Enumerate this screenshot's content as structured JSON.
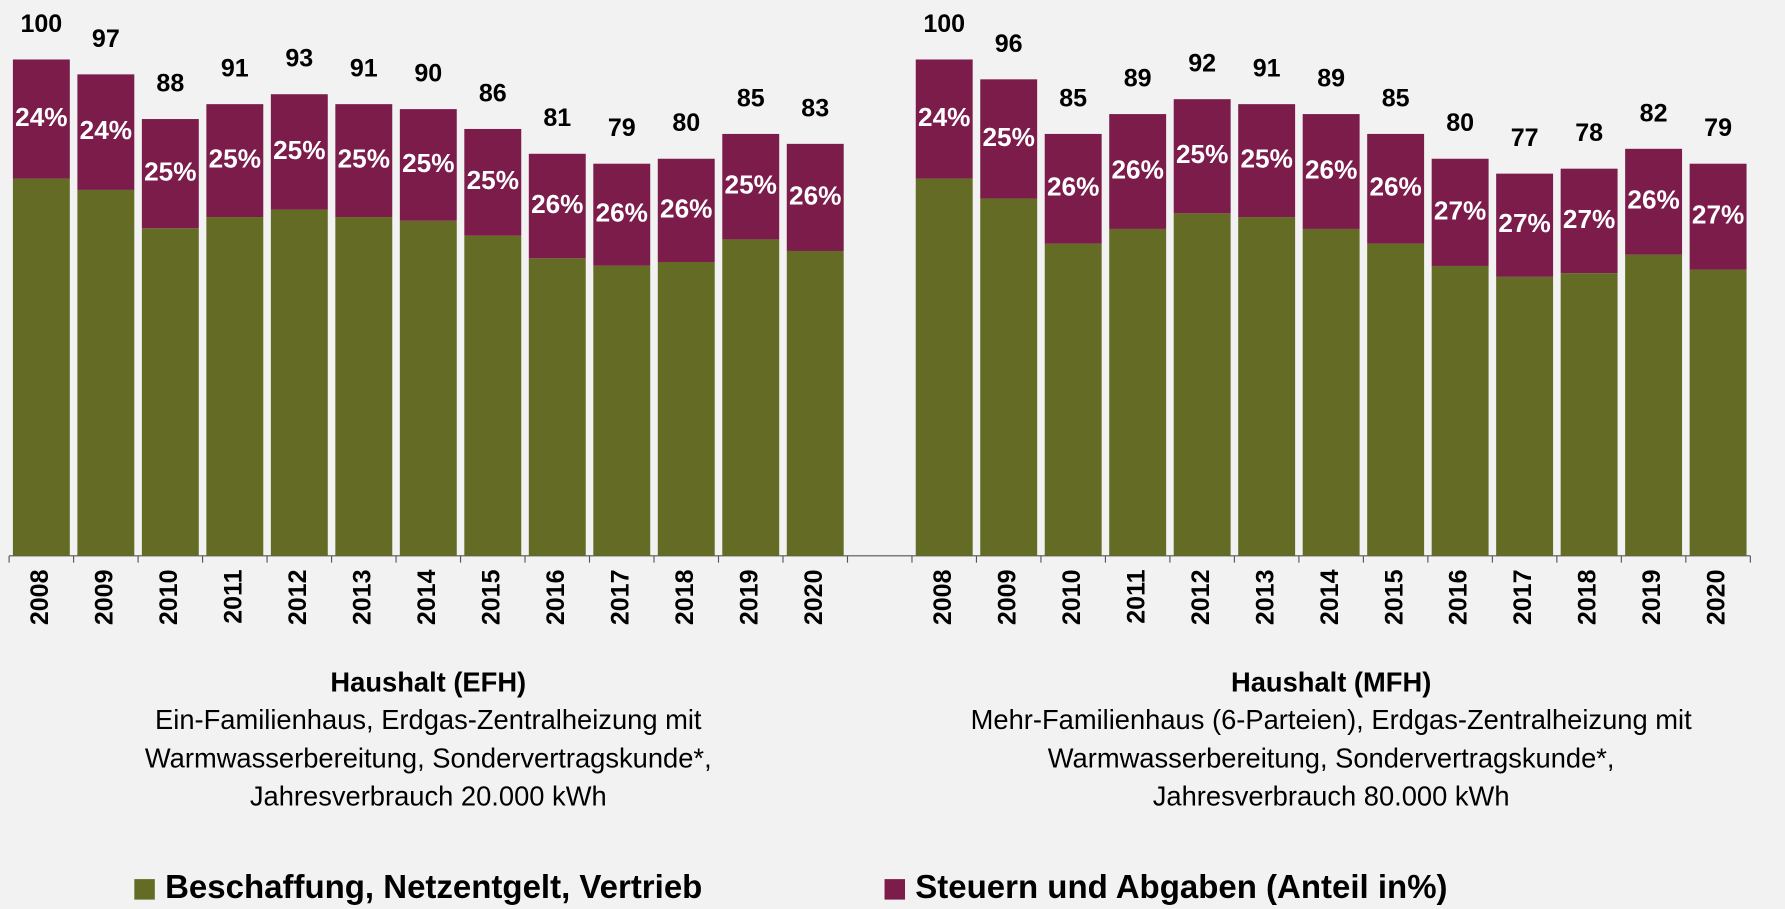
{
  "chart_data": {
    "type": "bar",
    "stacked": true,
    "series": [
      {
        "name": "Beschaffung, Netzentgelt, Vertrieb",
        "color": "#646b24"
      },
      {
        "name": "Steuern und Abgaben (Anteil in%)",
        "color": "#7b1c4b"
      }
    ],
    "ylim": [
      0,
      100
    ],
    "panels": [
      {
        "title": "Haushalt (EFH)",
        "subtitle": [
          "Ein-Familienhaus, Erdgas-Zentralheizung mit",
          "Warmwasserbereitung, Sondervertragskunde*,",
          "Jahresverbrauch 20.000 kWh"
        ],
        "categories": [
          "2008",
          "2009",
          "2010",
          "2011",
          "2012",
          "2013",
          "2014",
          "2015",
          "2016",
          "2017",
          "2018",
          "2019",
          "2020"
        ],
        "totals": [
          100,
          97,
          88,
          91,
          93,
          91,
          90,
          86,
          81,
          79,
          80,
          85,
          83
        ],
        "shares": [
          24,
          24,
          25,
          25,
          25,
          25,
          25,
          25,
          26,
          26,
          26,
          25,
          26
        ],
        "share_labels": [
          "24%",
          "24%",
          "25%",
          "25%",
          "25%",
          "25%",
          "25%",
          "25%",
          "26%",
          "26%",
          "26%",
          "25%",
          "26%"
        ]
      },
      {
        "title": "Haushalt (MFH)",
        "subtitle": [
          "Mehr-Familienhaus (6-Parteien), Erdgas-Zentralheizung mit",
          "Warmwasserbereitung, Sondervertragskunde*,",
          "Jahresverbrauch 80.000 kWh"
        ],
        "categories": [
          "2008",
          "2009",
          "2010",
          "2011",
          "2012",
          "2013",
          "2014",
          "2015",
          "2016",
          "2017",
          "2018",
          "2019",
          "2020"
        ],
        "totals": [
          100,
          96,
          85,
          89,
          92,
          91,
          89,
          85,
          80,
          77,
          78,
          82,
          79
        ],
        "shares": [
          24,
          25,
          26,
          26,
          25,
          25,
          26,
          26,
          27,
          27,
          27,
          26,
          27
        ],
        "share_labels": [
          "24%",
          "25%",
          "26%",
          "26%",
          "25%",
          "25%",
          "26%",
          "26%",
          "27%",
          "27%",
          "27%",
          "26%",
          "27%"
        ]
      }
    ]
  }
}
